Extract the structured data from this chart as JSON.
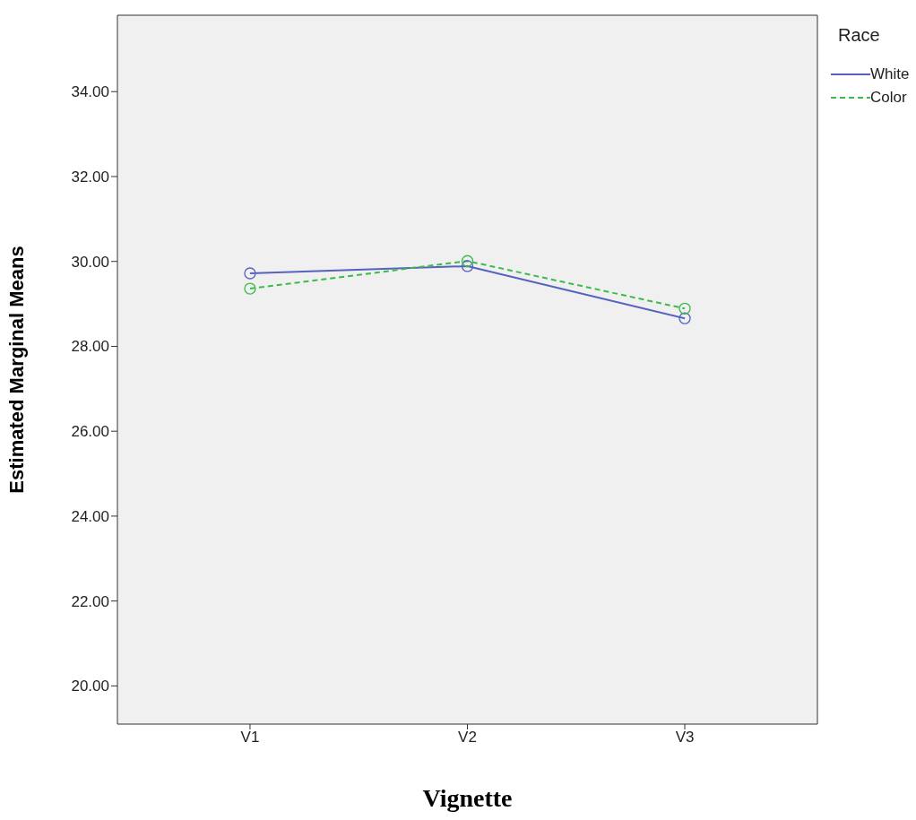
{
  "chart_data": {
    "type": "line",
    "xlabel": "Vignette",
    "ylabel": "Estimated Marginal Means",
    "legend_title": "Race",
    "categories": [
      "V1",
      "V2",
      "V3"
    ],
    "series": [
      {
        "name": "White",
        "color": "#5563bd",
        "values": [
          29.72,
          29.89,
          28.66
        ],
        "line_style": "solid"
      },
      {
        "name": "Color",
        "color": "#3dbb4a",
        "values": [
          29.36,
          30.01,
          28.89
        ],
        "line_style": "dashed"
      }
    ],
    "ylim": [
      19.1,
      35.8
    ],
    "yticks": [
      {
        "value": 20,
        "label": "20.00"
      },
      {
        "value": 22,
        "label": "22.00"
      },
      {
        "value": 24,
        "label": "24.00"
      },
      {
        "value": 26,
        "label": "26.00"
      },
      {
        "value": 28,
        "label": "28.00"
      },
      {
        "value": 30,
        "label": "30.00"
      },
      {
        "value": 32,
        "label": "32.00"
      },
      {
        "value": 34,
        "label": "34.00"
      }
    ],
    "marker": "circle",
    "grid": false,
    "legend": "top right"
  }
}
